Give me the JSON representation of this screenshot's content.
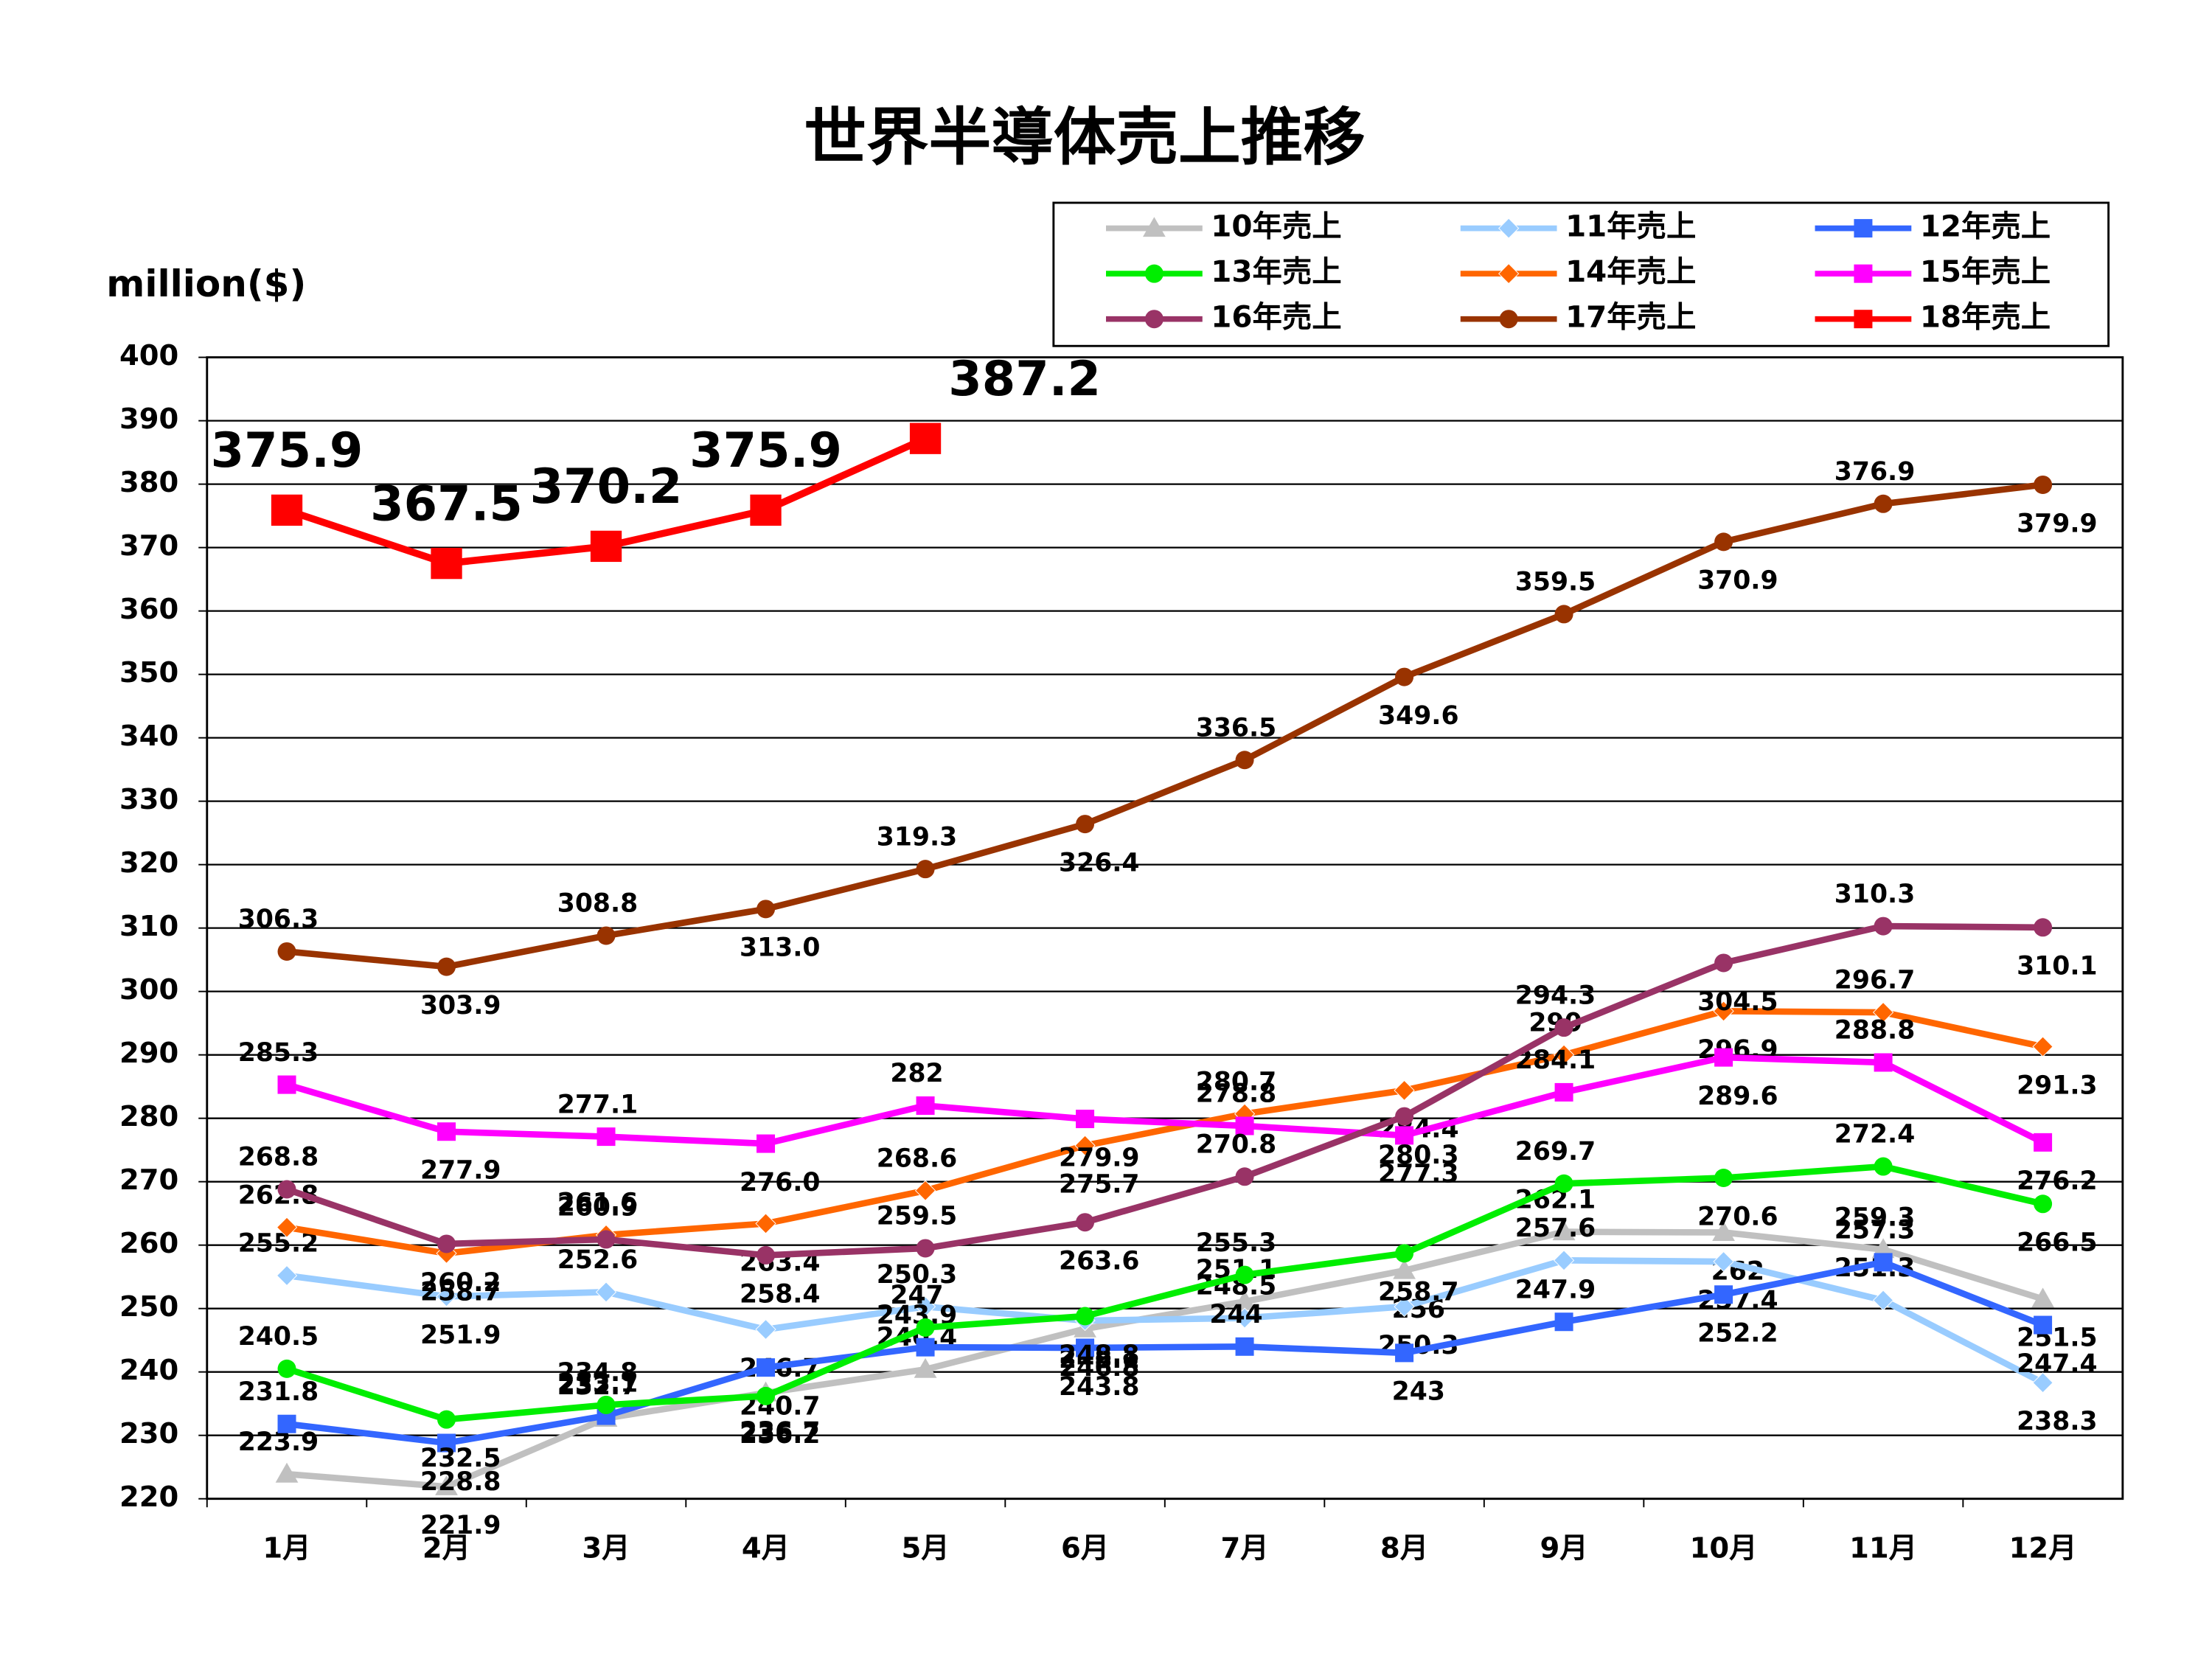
{
  "chart_data": {
    "type": "line",
    "title": "世界半導体売上推移",
    "y_label": "million($)",
    "categories": [
      "1月",
      "2月",
      "3月",
      "4月",
      "5月",
      "6月",
      "7月",
      "8月",
      "9月",
      "10月",
      "11月",
      "12月"
    ],
    "ylim": [
      220,
      400
    ],
    "yticks": [
      220,
      230,
      240,
      250,
      260,
      270,
      280,
      290,
      300,
      310,
      320,
      330,
      340,
      350,
      360,
      370,
      380,
      390,
      400
    ],
    "grid": true,
    "series": [
      {
        "name": "10年売上",
        "color": "#c0c0c0",
        "marker": "triangle",
        "values": [
          223.9,
          221.9,
          232.7,
          236.7,
          240.4,
          246.8,
          251.1,
          256,
          262.1,
          262,
          259.3,
          251.5
        ]
      },
      {
        "name": "11年売上",
        "color": "#99ccff",
        "marker": "diamond",
        "values": [
          255.2,
          251.9,
          252.6,
          246.7,
          250.3,
          248.1,
          248.5,
          250.3,
          257.6,
          257.4,
          251.3,
          238.3
        ]
      },
      {
        "name": "12年売上",
        "color": "#3366ff",
        "marker": "square",
        "values": [
          231.8,
          228.8,
          233.1,
          240.7,
          243.9,
          243.8,
          244,
          243,
          247.9,
          252.2,
          257.3,
          247.4
        ]
      },
      {
        "name": "13年売上",
        "color": "#00ee00",
        "marker": "circle",
        "values": [
          240.5,
          232.5,
          234.8,
          236.2,
          247,
          248.8,
          255.3,
          258.7,
          269.7,
          270.6,
          272.4,
          266.5
        ]
      },
      {
        "name": "14年売上",
        "color": "#ff6600",
        "marker": "diamond",
        "values": [
          262.8,
          258.7,
          261.6,
          263.4,
          268.6,
          275.7,
          280.7,
          284.4,
          290,
          296.9,
          296.7,
          291.3
        ]
      },
      {
        "name": "15年売上",
        "color": "#ff00ff",
        "marker": "square",
        "values": [
          285.3,
          277.9,
          277.1,
          276,
          282,
          279.9,
          278.8,
          277.3,
          284.1,
          289.6,
          288.8,
          276.2
        ],
        "value_labels": [
          "285.3",
          "277.9",
          "277.1",
          "276.0",
          "282",
          "279.9",
          "278.8",
          "277.3",
          "284.1",
          "289.6",
          "288.8",
          "276.2"
        ]
      },
      {
        "name": "16年売上",
        "color": "#993366",
        "marker": "circle",
        "values": [
          268.8,
          260.2,
          260.9,
          258.4,
          259.5,
          263.6,
          270.8,
          280.3,
          294.3,
          304.5,
          310.3,
          310.1
        ]
      },
      {
        "name": "17年売上",
        "color": "#993300",
        "marker": "circle",
        "values": [
          306.3,
          303.9,
          308.8,
          313,
          319.3,
          326.4,
          336.5,
          349.6,
          359.5,
          370.9,
          376.9,
          379.9
        ],
        "value_labels": [
          "306.3",
          "303.9",
          "308.8",
          "313.0",
          "319.3",
          "326.4",
          "336.5",
          "349.6",
          "359.5",
          "370.9",
          "376.9",
          "379.9"
        ]
      },
      {
        "name": "18年売上",
        "color": "#ff0000",
        "marker": "bigsquare",
        "values": [
          375.9,
          367.5,
          370.2,
          375.9,
          387.2,
          null,
          null,
          null,
          null,
          null,
          null,
          null
        ]
      }
    ]
  }
}
